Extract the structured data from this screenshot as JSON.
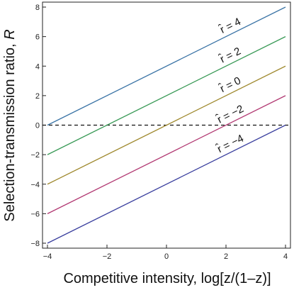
{
  "chart_data": {
    "type": "line",
    "title": "",
    "xlabel": "Competitive intensity, log[z/(1–z)]",
    "ylabel_text": "Selection-transmission ratio, ",
    "ylabel_var": "R",
    "xlim": [
      -4,
      4
    ],
    "ylim": [
      -8,
      8
    ],
    "x_ticks": [
      -4,
      -2,
      0,
      2,
      4
    ],
    "x_tick_labels": [
      "−4",
      "−2",
      "0",
      "2",
      "4"
    ],
    "y_ticks": [
      -8,
      -6,
      -4,
      -2,
      0,
      2,
      4,
      6,
      8
    ],
    "y_tick_labels": [
      "−8",
      "−6",
      "−4",
      "−2",
      "0",
      "2",
      "4",
      "6",
      "8"
    ],
    "grid": false,
    "x": [
      -4,
      4
    ],
    "series": [
      {
        "label": "r̂ = 4",
        "values": [
          0,
          8
        ],
        "color": "#3b74a6",
        "label_x": 2.2
      },
      {
        "label": "r̂ = 2",
        "values": [
          -2,
          6
        ],
        "color": "#3a9a57",
        "label_x": 2.2
      },
      {
        "label": "r̂ = 0",
        "values": [
          -4,
          4
        ],
        "color": "#a08a30",
        "label_x": 2.2
      },
      {
        "label": "r̂ = −2",
        "values": [
          -6,
          2
        ],
        "color": "#b23a73",
        "label_x": 2.2
      },
      {
        "label": "r̂ = −4",
        "values": [
          -8,
          0
        ],
        "color": "#3a3f9e",
        "label_x": 2.2
      }
    ],
    "reference_line": {
      "y": 0,
      "style": "dashed",
      "color": "#111111"
    }
  }
}
